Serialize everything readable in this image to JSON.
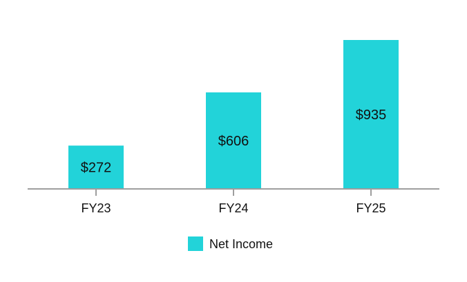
{
  "chart_data": {
    "type": "bar",
    "categories": [
      "FY23",
      "FY24",
      "FY25"
    ],
    "series": [
      {
        "name": "Net Income",
        "values": [
          272,
          606,
          935
        ],
        "data_labels": [
          "$272",
          "$606",
          "$935"
        ],
        "color": "#22D3D9"
      }
    ],
    "title": "",
    "xlabel": "",
    "ylabel": "",
    "ylim": [
      0,
      935
    ],
    "grid": false,
    "legend": {
      "position": "bottom-center"
    }
  },
  "colors": {
    "axis": "#9E9E9E",
    "text": "#111111"
  }
}
